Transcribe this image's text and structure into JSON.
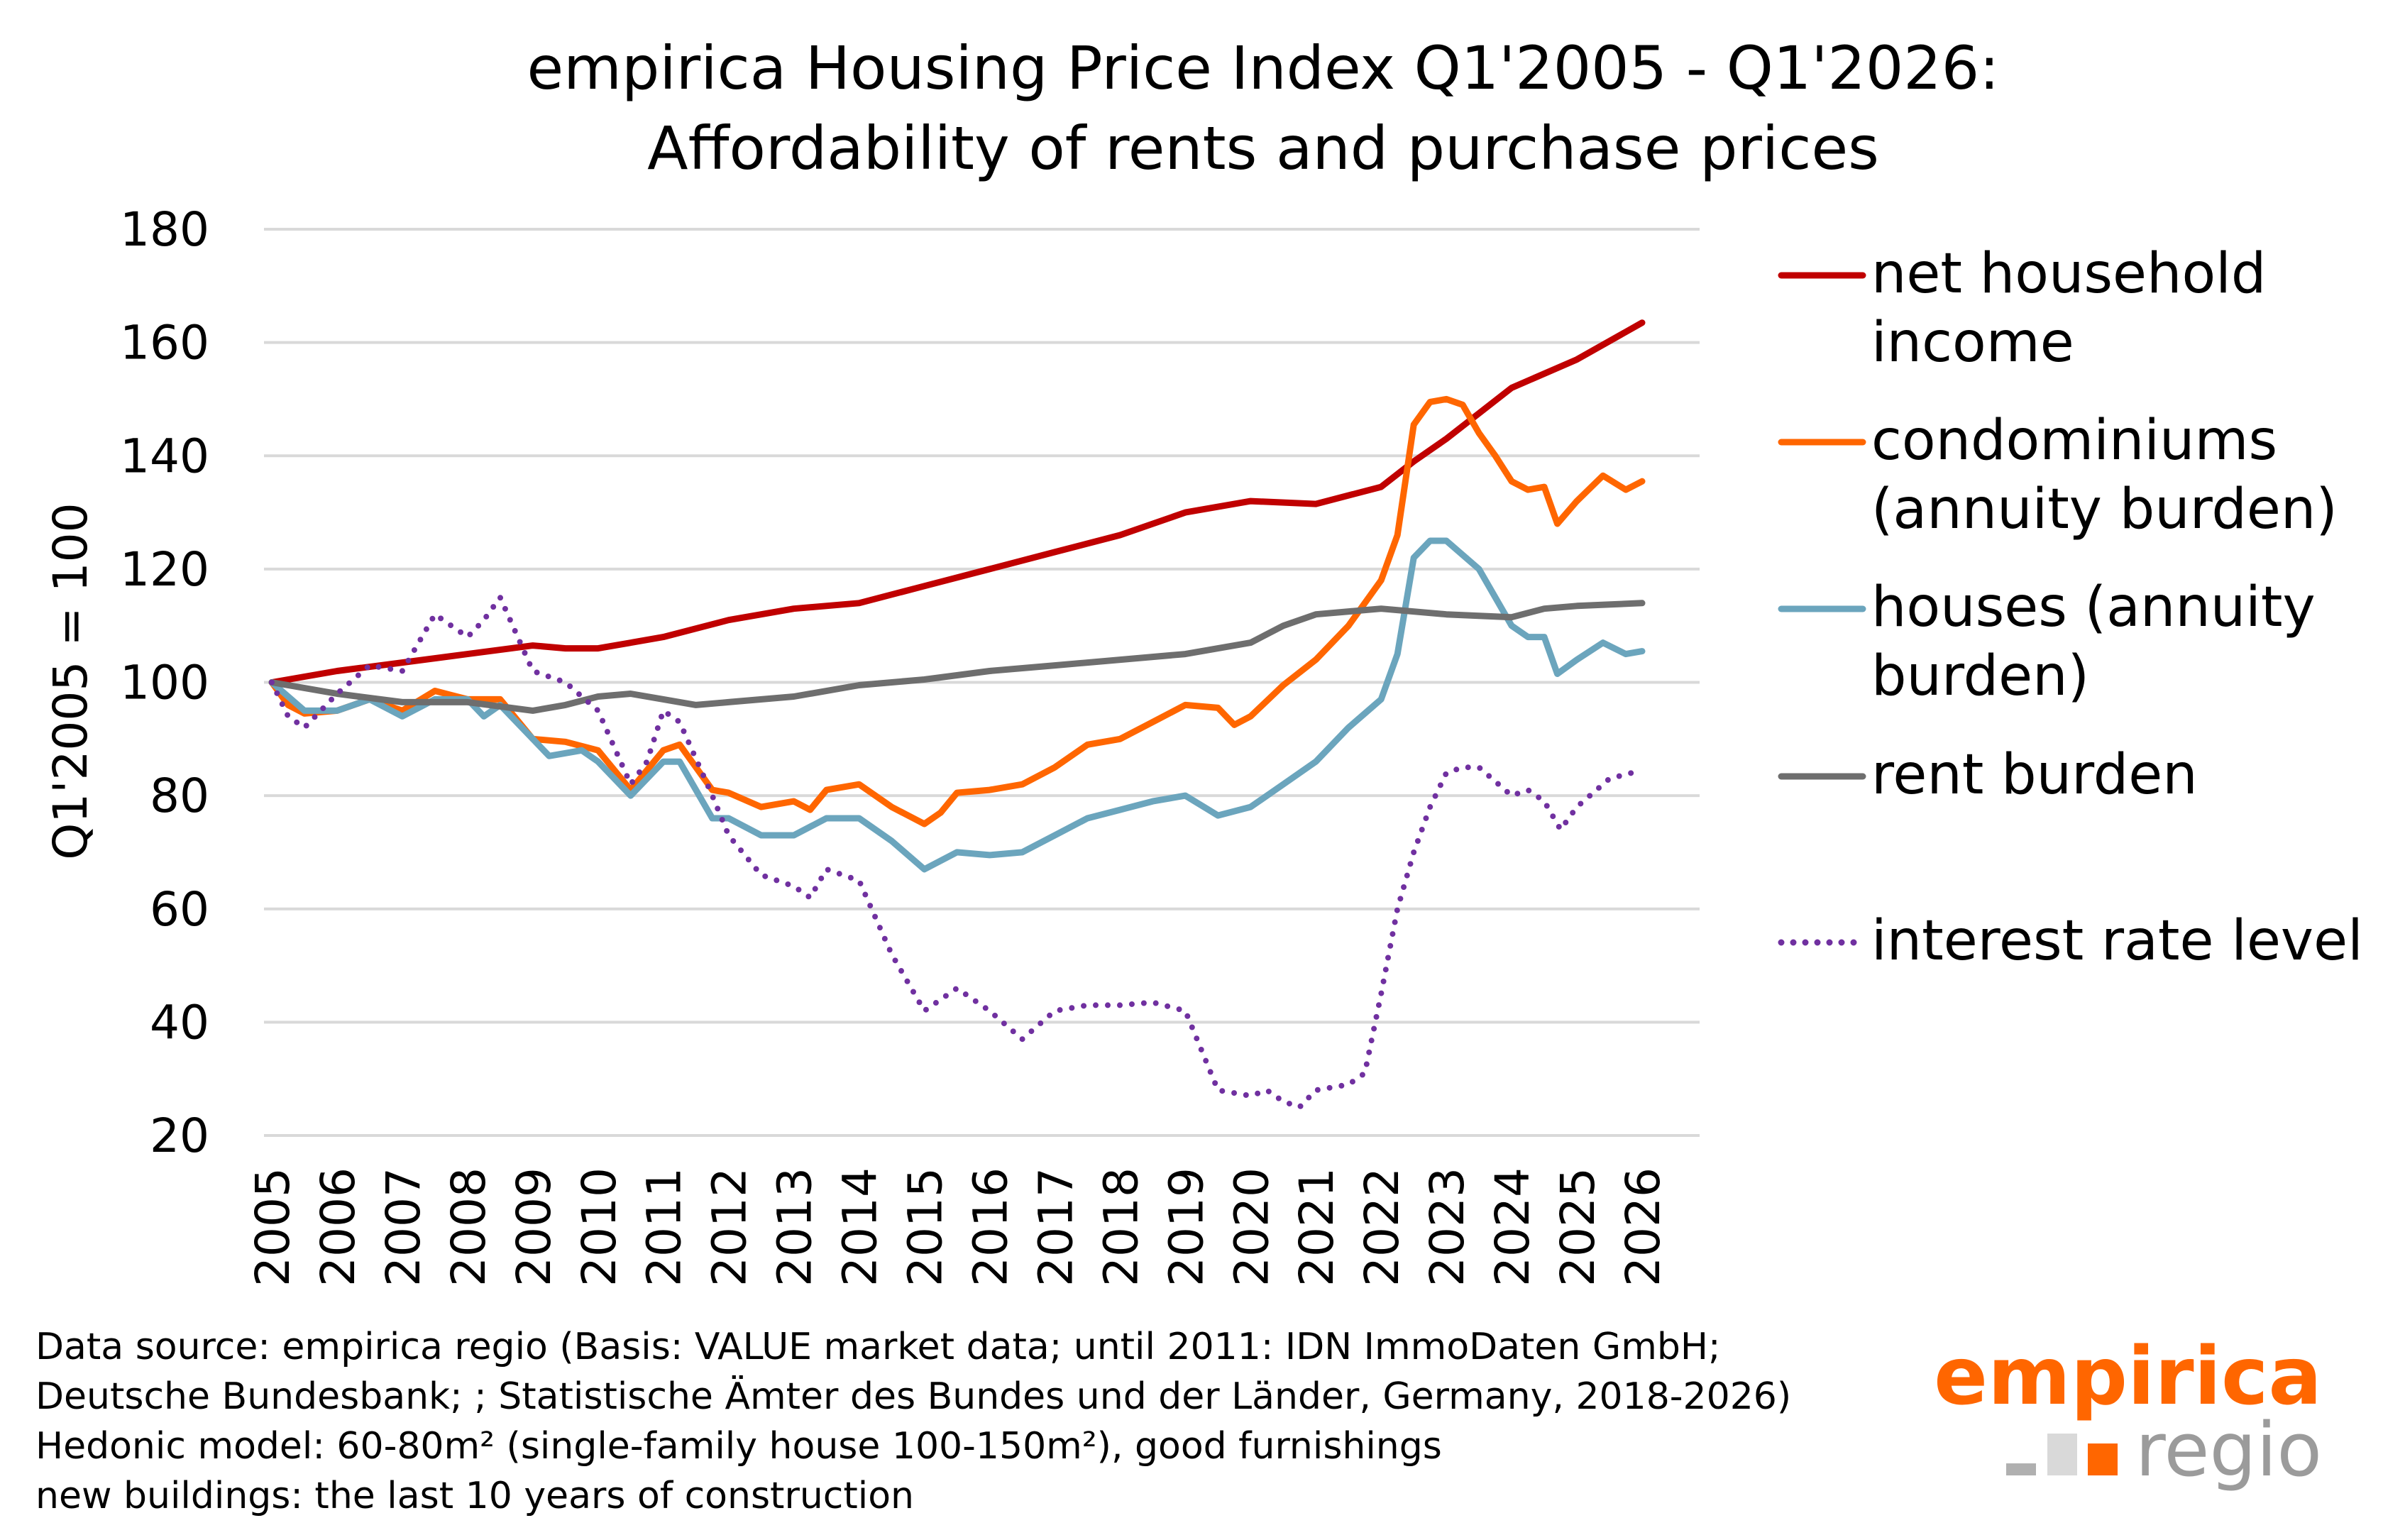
{
  "chart_data": {
    "type": "line",
    "title": [
      "empirica Housing Price Index Q1'2005 - Q1'2026:",
      "Affordability of rents and purchase prices"
    ],
    "ylabel": "Q1'2005 = 100",
    "xlabel": "",
    "ylim": [
      20,
      180
    ],
    "yticks": [
      20,
      40,
      60,
      80,
      100,
      120,
      140,
      160,
      180
    ],
    "xlim": [
      2005,
      2026
    ],
    "xticks": [
      "2005",
      "2006",
      "2007",
      "2008",
      "2009",
      "2010",
      "2011",
      "2012",
      "2013",
      "2014",
      "2015",
      "2016",
      "2017",
      "2018",
      "2019",
      "2020",
      "2021",
      "2022",
      "2023",
      "2024",
      "2025",
      "2026"
    ],
    "grid": "horizontal",
    "legend_placement": "right",
    "series": [
      {
        "name": [
          "net household",
          "income"
        ],
        "color": "#C00000",
        "style": "solid",
        "points": [
          [
            2005,
            100
          ],
          [
            2006,
            102
          ],
          [
            2007,
            103.5
          ],
          [
            2008,
            105
          ],
          [
            2009,
            106.5
          ],
          [
            2009.5,
            106
          ],
          [
            2010,
            106
          ],
          [
            2011,
            108
          ],
          [
            2012,
            111
          ],
          [
            2013,
            113
          ],
          [
            2014,
            114
          ],
          [
            2015,
            117
          ],
          [
            2016,
            120
          ],
          [
            2017,
            123
          ],
          [
            2018,
            126
          ],
          [
            2019,
            130
          ],
          [
            2020,
            132
          ],
          [
            2021,
            131.5
          ],
          [
            2022,
            134.5
          ],
          [
            2022.5,
            139
          ],
          [
            2023,
            143
          ],
          [
            2024,
            152
          ],
          [
            2025,
            157
          ],
          [
            2026,
            163.5
          ]
        ]
      },
      {
        "name": [
          "condominiums",
          "(annuity burden)"
        ],
        "color": "#FF6600",
        "style": "solid",
        "points": [
          [
            2005,
            100
          ],
          [
            2005.25,
            96
          ],
          [
            2005.5,
            94.5
          ],
          [
            2006,
            95
          ],
          [
            2006.5,
            97
          ],
          [
            2007,
            95
          ],
          [
            2007.5,
            98.5
          ],
          [
            2008,
            97
          ],
          [
            2008.5,
            97
          ],
          [
            2009,
            90
          ],
          [
            2009.5,
            89.5
          ],
          [
            2010,
            88
          ],
          [
            2010.5,
            81
          ],
          [
            2011,
            88
          ],
          [
            2011.25,
            89
          ],
          [
            2011.75,
            81
          ],
          [
            2012,
            80.5
          ],
          [
            2012.5,
            78
          ],
          [
            2013,
            79
          ],
          [
            2013.25,
            77.5
          ],
          [
            2013.5,
            81
          ],
          [
            2014,
            82
          ],
          [
            2014.5,
            78
          ],
          [
            2015,
            75
          ],
          [
            2015.25,
            77
          ],
          [
            2015.5,
            80.5
          ],
          [
            2016,
            81
          ],
          [
            2016.5,
            82
          ],
          [
            2017,
            85
          ],
          [
            2017.5,
            89
          ],
          [
            2018,
            90
          ],
          [
            2018.5,
            93
          ],
          [
            2019,
            96
          ],
          [
            2019.5,
            95.5
          ],
          [
            2019.75,
            92.5
          ],
          [
            2020,
            94
          ],
          [
            2020.5,
            99.5
          ],
          [
            2021,
            104
          ],
          [
            2021.5,
            110
          ],
          [
            2021.75,
            114
          ],
          [
            2022,
            118
          ],
          [
            2022.25,
            126
          ],
          [
            2022.5,
            145.5
          ],
          [
            2022.75,
            149.5
          ],
          [
            2023,
            150
          ],
          [
            2023.25,
            149
          ],
          [
            2023.5,
            144
          ],
          [
            2023.75,
            140
          ],
          [
            2024,
            135.5
          ],
          [
            2024.25,
            134
          ],
          [
            2024.5,
            134.5
          ],
          [
            2024.7,
            128
          ],
          [
            2025,
            132
          ],
          [
            2025.4,
            136.5
          ],
          [
            2025.75,
            134
          ],
          [
            2026,
            135.5
          ]
        ]
      },
      {
        "name": [
          "houses (annuity",
          "burden)"
        ],
        "color": "#6BA5BD",
        "style": "solid",
        "points": [
          [
            2005,
            100
          ],
          [
            2005.5,
            95
          ],
          [
            2006,
            95
          ],
          [
            2006.5,
            97
          ],
          [
            2007,
            94
          ],
          [
            2007.5,
            97
          ],
          [
            2008,
            97
          ],
          [
            2008.25,
            94
          ],
          [
            2008.5,
            96
          ],
          [
            2009,
            90
          ],
          [
            2009.25,
            87
          ],
          [
            2009.75,
            88
          ],
          [
            2010,
            86
          ],
          [
            2010.5,
            80
          ],
          [
            2011,
            86
          ],
          [
            2011.25,
            86
          ],
          [
            2011.75,
            76
          ],
          [
            2012,
            76
          ],
          [
            2012.5,
            73
          ],
          [
            2013,
            73
          ],
          [
            2013.5,
            76
          ],
          [
            2014,
            76
          ],
          [
            2014.5,
            72
          ],
          [
            2015,
            67
          ],
          [
            2015.5,
            70
          ],
          [
            2016,
            69.5
          ],
          [
            2016.5,
            70
          ],
          [
            2017,
            73
          ],
          [
            2017.5,
            76
          ],
          [
            2018,
            77.5
          ],
          [
            2018.5,
            79
          ],
          [
            2019,
            80
          ],
          [
            2019.5,
            76.5
          ],
          [
            2020,
            78
          ],
          [
            2020.5,
            82
          ],
          [
            2021,
            86
          ],
          [
            2021.5,
            92
          ],
          [
            2022,
            97
          ],
          [
            2022.25,
            105
          ],
          [
            2022.5,
            122
          ],
          [
            2022.75,
            125
          ],
          [
            2023,
            125
          ],
          [
            2023.5,
            120
          ],
          [
            2024,
            110
          ],
          [
            2024.25,
            108
          ],
          [
            2024.5,
            108
          ],
          [
            2024.7,
            101.5
          ],
          [
            2025,
            104
          ],
          [
            2025.4,
            107
          ],
          [
            2025.75,
            105
          ],
          [
            2026,
            105.5
          ]
        ]
      },
      {
        "name": [
          "rent burden"
        ],
        "color": "#6E6E6E",
        "style": "solid",
        "points": [
          [
            2005,
            100
          ],
          [
            2006,
            98
          ],
          [
            2007,
            96.5
          ],
          [
            2008,
            96.5
          ],
          [
            2009,
            95
          ],
          [
            2009.5,
            96
          ],
          [
            2010,
            97.5
          ],
          [
            2010.5,
            98
          ],
          [
            2011,
            97
          ],
          [
            2011.5,
            96
          ],
          [
            2012,
            96.5
          ],
          [
            2013,
            97.5
          ],
          [
            2014,
            99.5
          ],
          [
            2015,
            100.5
          ],
          [
            2016,
            102
          ],
          [
            2017,
            103
          ],
          [
            2018,
            104
          ],
          [
            2019,
            105
          ],
          [
            2020,
            107
          ],
          [
            2020.5,
            110
          ],
          [
            2021,
            112
          ],
          [
            2022,
            113
          ],
          [
            2023,
            112
          ],
          [
            2024,
            111.5
          ],
          [
            2024.5,
            113
          ],
          [
            2025,
            113.5
          ],
          [
            2026,
            114
          ]
        ]
      },
      {
        "name": [
          "interest rate level"
        ],
        "color": "#7030A0",
        "style": "dotted",
        "points": [
          [
            2005,
            100
          ],
          [
            2005.25,
            94
          ],
          [
            2005.5,
            92
          ],
          [
            2006,
            98
          ],
          [
            2006.5,
            103
          ],
          [
            2007,
            102
          ],
          [
            2007.25,
            107
          ],
          [
            2007.5,
            112
          ],
          [
            2008,
            108
          ],
          [
            2008.25,
            111
          ],
          [
            2008.5,
            115
          ],
          [
            2009,
            102
          ],
          [
            2009.5,
            100
          ],
          [
            2010,
            95
          ],
          [
            2010.5,
            82
          ],
          [
            2010.75,
            86
          ],
          [
            2011,
            95
          ],
          [
            2011.25,
            93
          ],
          [
            2011.75,
            80
          ],
          [
            2012,
            73
          ],
          [
            2012.5,
            66
          ],
          [
            2013,
            64
          ],
          [
            2013.25,
            62
          ],
          [
            2013.5,
            67
          ],
          [
            2014,
            65
          ],
          [
            2014.5,
            52
          ],
          [
            2015,
            42
          ],
          [
            2015.5,
            46
          ],
          [
            2016,
            42
          ],
          [
            2016.5,
            37
          ],
          [
            2017,
            42
          ],
          [
            2017.5,
            43
          ],
          [
            2018,
            43
          ],
          [
            2018.5,
            43.5
          ],
          [
            2019,
            42
          ],
          [
            2019.5,
            28
          ],
          [
            2020,
            27
          ],
          [
            2020.25,
            28
          ],
          [
            2020.5,
            26
          ],
          [
            2020.75,
            25
          ],
          [
            2021,
            28
          ],
          [
            2021.5,
            29
          ],
          [
            2021.75,
            31
          ],
          [
            2022,
            45
          ],
          [
            2022.25,
            60
          ],
          [
            2022.5,
            70
          ],
          [
            2022.75,
            78
          ],
          [
            2023,
            84
          ],
          [
            2023.25,
            85
          ],
          [
            2023.5,
            85
          ],
          [
            2024,
            80
          ],
          [
            2024.25,
            81
          ],
          [
            2024.5,
            79
          ],
          [
            2024.75,
            74
          ],
          [
            2025,
            78
          ],
          [
            2025.5,
            83
          ],
          [
            2026,
            84.5
          ]
        ]
      }
    ]
  },
  "footer": {
    "lines": [
      "Data source: empirica regio (Basis: VALUE market data; until 2011: IDN ImmoDaten GmbH;",
      "Deutsche Bundesbank; ; Statistische Ämter des Bundes und der Länder, Germany, 2018-2026)",
      "Hedonic model: 60-80m² (single-family house 100-150m²), good furnishings",
      "new buildings: the last 10 years of construction"
    ]
  },
  "logo": {
    "line1": "empirica",
    "line2": "regio",
    "orange": "#FF6600",
    "gray": "#9B9B9B"
  }
}
